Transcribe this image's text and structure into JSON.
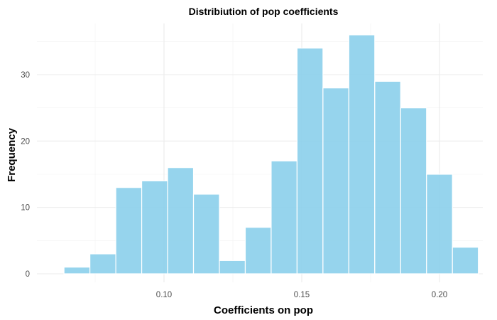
{
  "chart_data": {
    "type": "bar",
    "subtype": "histogram",
    "title": "Distribiution of pop coefficients",
    "xlabel": "Coefficients on pop",
    "ylabel": "Frequency",
    "x_ticks": [
      "0.10",
      "0.15",
      "0.20"
    ],
    "x_tick_values": [
      0.1,
      0.15,
      0.2
    ],
    "y_ticks": [
      "0",
      "10",
      "20",
      "30"
    ],
    "y_tick_values": [
      0,
      10,
      20,
      30
    ],
    "xlim": [
      0.0625,
      0.2175
    ],
    "ylim": [
      0,
      38
    ],
    "bin_width": 0.0094,
    "bin_starts": [
      0.0637,
      0.0731,
      0.0825,
      0.0919,
      0.1013,
      0.1107,
      0.1201,
      0.1295,
      0.1389,
      0.1483,
      0.1577,
      0.1671,
      0.1765,
      0.1859,
      0.1953,
      0.2047
    ],
    "values": [
      1,
      3,
      13,
      14,
      16,
      12,
      2,
      7,
      17,
      34,
      28,
      36,
      29,
      25,
      15,
      4
    ],
    "bar_color": "#87ceeb",
    "grid": true,
    "legend": null
  }
}
